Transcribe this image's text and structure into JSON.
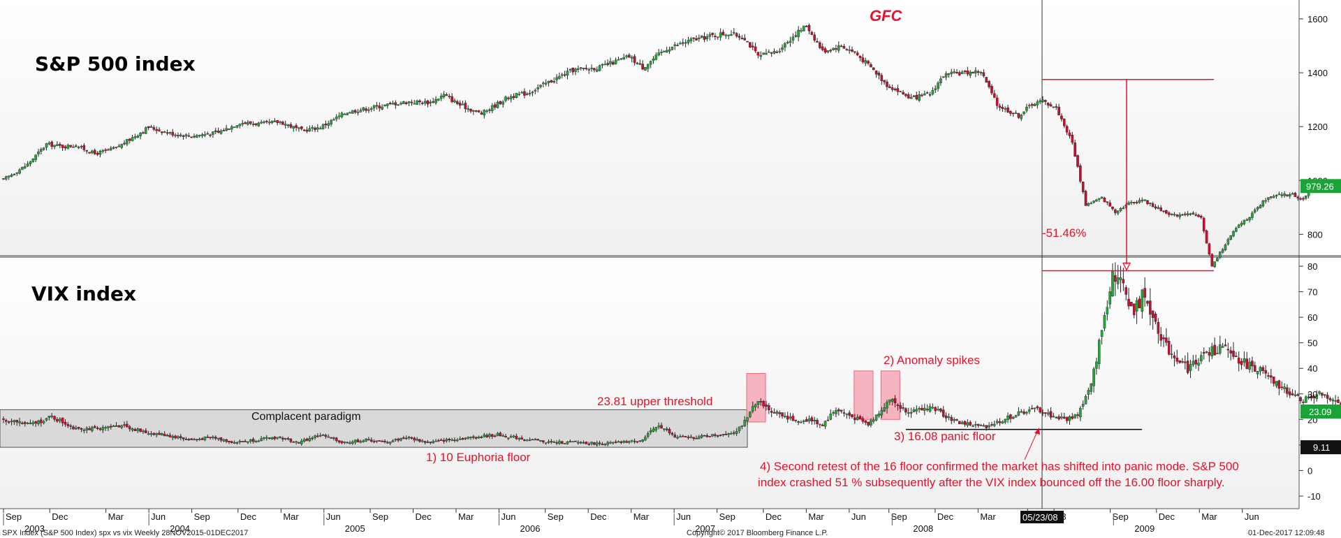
{
  "chart_data": [
    {
      "type": "candlestick",
      "title": "S&P 500 index",
      "annotation_top": "GFC",
      "y_ticks": [
        800,
        1000,
        1200,
        1400,
        1600
      ],
      "ylim": [
        600,
        1650
      ],
      "last_price_label": "979.26",
      "last_price": 979.26,
      "peak_level": 1375,
      "trough_level": 665,
      "drawdown_label": "-51.46%",
      "grid": false,
      "series_weekly_close_anchors": [
        [
          0,
          1003
        ],
        [
          9,
          1060
        ],
        [
          16,
          1135
        ],
        [
          22,
          1126
        ],
        [
          27,
          1130
        ],
        [
          34,
          1099
        ],
        [
          42,
          1120
        ],
        [
          54,
          1198
        ],
        [
          62,
          1175
        ],
        [
          70,
          1165
        ],
        [
          80,
          1178
        ],
        [
          88,
          1215
        ],
        [
          96,
          1210
        ],
        [
          103,
          1218
        ],
        [
          111,
          1185
        ],
        [
          118,
          1198
        ],
        [
          128,
          1255
        ],
        [
          137,
          1270
        ],
        [
          145,
          1285
        ],
        [
          151,
          1292
        ],
        [
          159,
          1290
        ],
        [
          164,
          1318
        ],
        [
          170,
          1280
        ],
        [
          178,
          1248
        ],
        [
          188,
          1310
        ],
        [
          195,
          1325
        ],
        [
          205,
          1375
        ],
        [
          212,
          1410
        ],
        [
          222,
          1420
        ],
        [
          233,
          1460
        ],
        [
          238,
          1420
        ],
        [
          247,
          1490
        ],
        [
          256,
          1520
        ],
        [
          265,
          1540
        ],
        [
          270,
          1547
        ],
        [
          276,
          1530
        ],
        [
          281,
          1460
        ],
        [
          288,
          1480
        ],
        [
          294,
          1535
        ],
        [
          299,
          1576
        ],
        [
          305,
          1480
        ],
        [
          312,
          1500
        ],
        [
          317,
          1475
        ],
        [
          323,
          1420
        ],
        [
          329,
          1355
        ],
        [
          338,
          1305
        ],
        [
          345,
          1320
        ],
        [
          350,
          1390
        ],
        [
          357,
          1400
        ],
        [
          364,
          1405
        ],
        [
          370,
          1280
        ],
        [
          378,
          1240
        ],
        [
          383,
          1285
        ],
        [
          387,
          1295
        ],
        [
          392,
          1270
        ],
        [
          398,
          1140
        ],
        [
          403,
          910
        ],
        [
          409,
          935
        ],
        [
          414,
          885
        ],
        [
          419,
          915
        ],
        [
          424,
          930
        ],
        [
          430,
          895
        ],
        [
          436,
          870
        ],
        [
          441,
          880
        ],
        [
          446,
          860
        ],
        [
          450,
          680
        ],
        [
          455,
          765
        ],
        [
          460,
          835
        ],
        [
          465,
          875
        ],
        [
          470,
          930
        ],
        [
          475,
          945
        ],
        [
          480,
          948
        ],
        [
          484,
          930
        ],
        [
          488,
          979
        ]
      ]
    },
    {
      "type": "candlestick",
      "title": "VIX index",
      "y_ticks": [
        -10,
        0,
        10,
        20,
        30,
        40,
        50,
        60,
        70,
        80
      ],
      "ylim": [
        -13,
        83
      ],
      "last_price_label": "23.09",
      "last_price": 23.09,
      "level_label_2": "9.11",
      "level_2": 9.11,
      "complacent_box": {
        "x_start": 0,
        "x_end": 277,
        "y_low": 9.1,
        "y_high": 23.8
      },
      "panic_floor_level": 16.08,
      "series_weekly_close_anchors": [
        [
          0,
          20
        ],
        [
          10,
          18
        ],
        [
          18,
          21
        ],
        [
          26,
          17
        ],
        [
          36,
          16
        ],
        [
          44,
          18
        ],
        [
          52,
          15
        ],
        [
          60,
          14
        ],
        [
          70,
          12
        ],
        [
          78,
          13
        ],
        [
          86,
          11
        ],
        [
          94,
          12
        ],
        [
          102,
          13
        ],
        [
          110,
          11
        ],
        [
          118,
          14
        ],
        [
          126,
          11
        ],
        [
          136,
          12
        ],
        [
          142,
          11
        ],
        [
          150,
          13
        ],
        [
          158,
          11
        ],
        [
          166,
          12
        ],
        [
          175,
          13
        ],
        [
          184,
          14
        ],
        [
          190,
          13
        ],
        [
          196,
          12
        ],
        [
          204,
          11
        ],
        [
          214,
          11
        ],
        [
          222,
          10.5
        ],
        [
          230,
          11
        ],
        [
          238,
          12
        ],
        [
          244,
          18
        ],
        [
          250,
          13
        ],
        [
          258,
          13
        ],
        [
          266,
          14
        ],
        [
          272,
          15
        ],
        [
          277,
          20
        ],
        [
          280,
          27
        ],
        [
          285,
          24
        ],
        [
          290,
          22
        ],
        [
          295,
          19
        ],
        [
          300,
          20
        ],
        [
          305,
          18
        ],
        [
          310,
          24
        ],
        [
          316,
          21
        ],
        [
          322,
          18
        ],
        [
          326,
          23
        ],
        [
          330,
          28
        ],
        [
          335,
          24
        ],
        [
          340,
          23
        ],
        [
          345,
          25
        ],
        [
          350,
          22
        ],
        [
          355,
          19
        ],
        [
          360,
          18
        ],
        [
          365,
          17
        ],
        [
          369,
          18.5
        ],
        [
          375,
          21
        ],
        [
          380,
          23
        ],
        [
          385,
          24
        ],
        [
          391,
          21
        ],
        [
          396,
          20
        ],
        [
          400,
          22
        ],
        [
          405,
          33
        ],
        [
          409,
          55
        ],
        [
          413,
          78
        ],
        [
          417,
          72
        ],
        [
          421,
          62
        ],
        [
          425,
          70
        ],
        [
          429,
          58
        ],
        [
          433,
          48
        ],
        [
          437,
          44
        ],
        [
          441,
          40
        ],
        [
          447,
          45
        ],
        [
          453,
          48
        ],
        [
          458,
          45
        ],
        [
          462,
          42
        ],
        [
          467,
          40
        ],
        [
          472,
          35
        ],
        [
          478,
          31
        ],
        [
          484,
          28
        ],
        [
          490,
          30
        ],
        [
          495,
          27
        ],
        [
          500,
          24
        ],
        [
          503,
          23.09
        ]
      ]
    }
  ],
  "labels": {
    "spx_title": "S&P 500 index",
    "vix_title": "VIX index",
    "gfc": "GFC",
    "drawdown": "-51.46%",
    "complacent": "Complacent paradigm",
    "upper_threshold": "23.81 upper threshold",
    "euphoria_floor": "1) 10 Euphoria floor",
    "anomaly_spikes": "2) Anomaly spikes",
    "panic_floor": "3) 16.08 panic floor",
    "note_line1": "4) Second retest of the 16 floor confirmed the market has shifted into panic mode. S&P 500",
    "note_line2": "index crashed 51 % subsequently after the VIX index bounced off the 16.00 floor sharply.",
    "cursor_date": "05/23/08"
  },
  "x_axis": {
    "months": [
      {
        "label": "Sep",
        "week": 0
      },
      {
        "label": "Dec",
        "week": 14
      },
      {
        "label": "Mar",
        "week": 31
      },
      {
        "label": "Jun",
        "week": 44
      },
      {
        "label": "Sep",
        "week": 57
      },
      {
        "label": "Dec",
        "week": 71
      },
      {
        "label": "Mar",
        "week": 84
      },
      {
        "label": "Jun",
        "week": 97
      },
      {
        "label": "Sep",
        "week": 111
      },
      {
        "label": "Dec",
        "week": 124
      },
      {
        "label": "Mar",
        "week": 137
      },
      {
        "label": "Jun",
        "week": 150
      },
      {
        "label": "Sep",
        "week": 164
      },
      {
        "label": "Dec",
        "week": 177
      },
      {
        "label": "Mar",
        "week": 190
      },
      {
        "label": "Jun",
        "week": 203
      },
      {
        "label": "Sep",
        "week": 216
      },
      {
        "label": "Dec",
        "week": 230
      },
      {
        "label": "Mar",
        "week": 243
      },
      {
        "label": "Jun",
        "week": 256
      },
      {
        "label": "Sep",
        "week": 268
      },
      {
        "label": "Dec",
        "week": 282
      },
      {
        "label": "Mar",
        "week": 295
      },
      {
        "label": "Jun",
        "week": 310
      },
      {
        "label": "08",
        "week": 318
      },
      {
        "label": "Sep",
        "week": 335
      },
      {
        "label": "Dec",
        "week": 349
      },
      {
        "label": "Mar",
        "week": 362
      },
      {
        "label": "Jun",
        "week": 375
      }
    ],
    "years": [
      {
        "label": "2003",
        "week": 0
      },
      {
        "label": "2004",
        "week": 44
      },
      {
        "label": "2005",
        "week": 97
      },
      {
        "label": "2006",
        "week": 150
      },
      {
        "label": "2007",
        "week": 203
      },
      {
        "label": "2008",
        "week": 269
      },
      {
        "label": "2009",
        "week": 336
      }
    ]
  },
  "footer": {
    "left": "SPX Index (S&P 500 Index) spx vs vix  Weekly 28NOV2015-01DEC2017",
    "center": "Copyright© 2017 Bloomberg Finance L.P.",
    "right": "01-Dec-2017 12:09:48"
  },
  "colors": {
    "up": "#27a53a",
    "down": "#c8102e",
    "annotation": "#e8102a",
    "box_fill": "#d9d9d9",
    "spike_fill": "#f4a8b6",
    "last_price_bg": "#1aa336",
    "level_bg": "#111111"
  }
}
